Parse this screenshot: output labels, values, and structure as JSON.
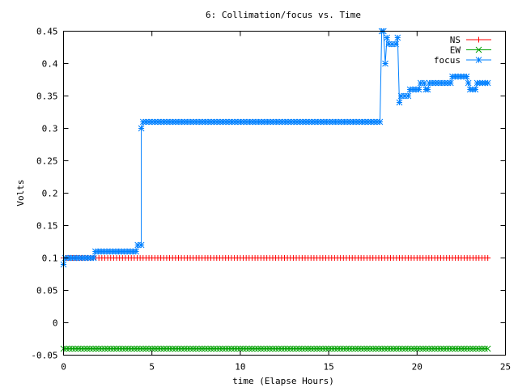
{
  "chart_data": {
    "type": "line",
    "title": "6: Collimation/focus vs. Time",
    "xlabel": "time (Elapse Hours)",
    "ylabel": "Volts",
    "xlim": [
      0,
      25
    ],
    "ylim": [
      -0.05,
      0.45
    ],
    "x_ticks": [
      {
        "value": 0,
        "label": "0"
      },
      {
        "value": 5,
        "label": "5"
      },
      {
        "value": 10,
        "label": "10"
      },
      {
        "value": 15,
        "label": "15"
      },
      {
        "value": 20,
        "label": "20"
      },
      {
        "value": 25,
        "label": "25"
      }
    ],
    "y_ticks": [
      {
        "value": -0.05,
        "label": "-0.05"
      },
      {
        "value": 0,
        "label": "0"
      },
      {
        "value": 0.05,
        "label": "0.05"
      },
      {
        "value": 0.1,
        "label": "0.1"
      },
      {
        "value": 0.15,
        "label": "0.15"
      },
      {
        "value": 0.2,
        "label": "0.2"
      },
      {
        "value": 0.25,
        "label": "0.25"
      },
      {
        "value": 0.3,
        "label": "0.3"
      },
      {
        "value": 0.35,
        "label": "0.35"
      },
      {
        "value": 0.4,
        "label": "0.4"
      },
      {
        "value": 0.45,
        "label": "0.45"
      }
    ],
    "grid": false,
    "legend_position": "top-right",
    "sampling_interval_hours": 0.1667,
    "series": [
      {
        "name": "NS",
        "color": "#ff0000",
        "marker": "plus",
        "segments": [
          {
            "x_start": 0,
            "x_end": 24,
            "y": 0.1
          }
        ]
      },
      {
        "name": "EW",
        "color": "#00a000",
        "marker": "cross",
        "segments": [
          {
            "x_start": 0,
            "x_end": 24,
            "y": -0.04
          }
        ]
      },
      {
        "name": "focus",
        "color": "#0080ff",
        "marker": "star",
        "segments": [
          {
            "x_start": 0,
            "x_end": 0,
            "y": 0.09
          },
          {
            "x_start": 0.1,
            "x_end": 1.7,
            "y": 0.1
          },
          {
            "x_start": 1.8,
            "x_end": 4.1,
            "y": 0.11
          },
          {
            "x_start": 4.2,
            "x_end": 4.4,
            "y": 0.12
          },
          {
            "x_start": 4.4,
            "x_end": 4.4,
            "y": 0.3
          },
          {
            "x_start": 4.5,
            "x_end": 17.9,
            "y": 0.31
          },
          {
            "x_start": 18.0,
            "x_end": 18.1,
            "y": 0.45
          },
          {
            "x_start": 18.2,
            "x_end": 18.2,
            "y": 0.4
          },
          {
            "x_start": 18.3,
            "x_end": 18.3,
            "y": 0.44
          },
          {
            "x_start": 18.4,
            "x_end": 18.8,
            "y": 0.43
          },
          {
            "x_start": 18.9,
            "x_end": 18.9,
            "y": 0.44
          },
          {
            "x_start": 19.0,
            "x_end": 19.0,
            "y": 0.34
          },
          {
            "x_start": 19.1,
            "x_end": 19.5,
            "y": 0.35
          },
          {
            "x_start": 19.6,
            "x_end": 20.1,
            "y": 0.36
          },
          {
            "x_start": 20.2,
            "x_end": 20.4,
            "y": 0.37
          },
          {
            "x_start": 20.5,
            "x_end": 20.6,
            "y": 0.36
          },
          {
            "x_start": 20.7,
            "x_end": 21.9,
            "y": 0.37
          },
          {
            "x_start": 22.0,
            "x_end": 22.8,
            "y": 0.38
          },
          {
            "x_start": 22.9,
            "x_end": 22.9,
            "y": 0.37
          },
          {
            "x_start": 23.0,
            "x_end": 23.3,
            "y": 0.36
          },
          {
            "x_start": 23.4,
            "x_end": 24.0,
            "y": 0.37
          }
        ]
      }
    ]
  }
}
